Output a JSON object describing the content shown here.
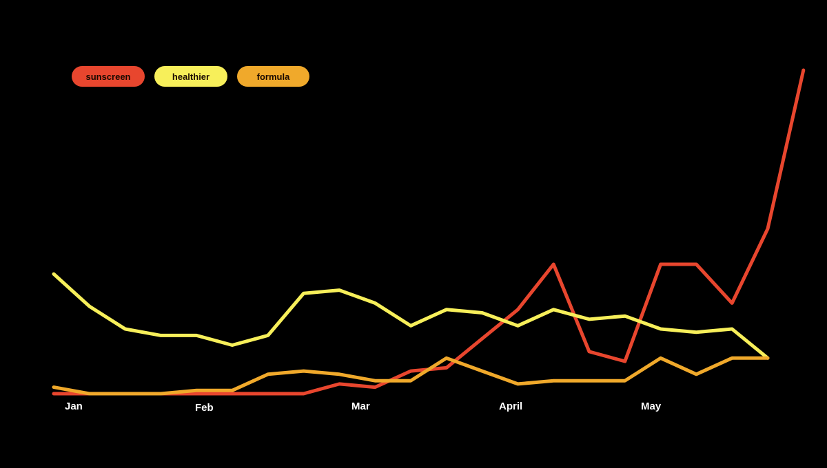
{
  "chart_data": {
    "type": "line",
    "title": "",
    "xlabel": "",
    "ylabel": "",
    "grid": false,
    "legend_placement": "top-left",
    "x_ticks": [
      "Jan",
      "Feb",
      "Mar",
      "April",
      "May"
    ],
    "ylim": [
      0,
      100
    ],
    "series": [
      {
        "name": "sunscreen",
        "color": "#e8462e",
        "values": [
          0,
          0,
          0,
          0,
          0,
          0,
          0,
          0,
          3,
          2,
          7,
          8,
          17,
          26,
          40,
          13,
          10,
          40,
          40,
          28,
          51,
          100
        ]
      },
      {
        "name": "healthier",
        "color": "#f7ef5a",
        "values": [
          37,
          27,
          20,
          18,
          18,
          15,
          18,
          31,
          32,
          28,
          21,
          26,
          25,
          21,
          26,
          23,
          24,
          20,
          19,
          20,
          11
        ]
      },
      {
        "name": "formula",
        "color": "#f0a92b",
        "values": [
          2,
          0,
          0,
          0,
          1,
          1,
          6,
          7,
          6,
          4,
          4,
          11,
          7,
          3,
          4,
          4,
          4,
          11,
          6,
          11,
          11
        ]
      }
    ]
  }
}
